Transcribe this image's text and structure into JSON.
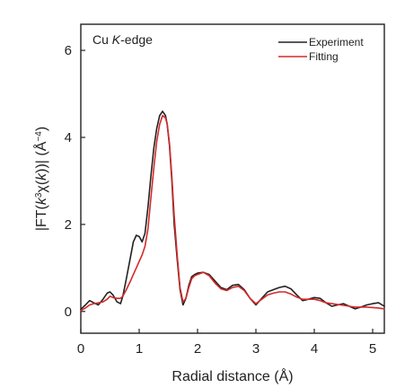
{
  "chart_data": {
    "type": "line",
    "annotation_prefix": "Cu ",
    "annotation_italic": "K",
    "annotation_suffix": "-edge",
    "xlabel": "Radial distance (Å)",
    "ylabel_parts": [
      "|FT(",
      "k",
      "3",
      "χ(",
      "k",
      "))| (Å",
      "−4",
      ")"
    ],
    "xlim": [
      0,
      5.2
    ],
    "ylim": [
      -0.5,
      6.6
    ],
    "xticks": [
      0,
      1,
      2,
      3,
      4,
      5
    ],
    "yticks": [
      0,
      2,
      4,
      6
    ],
    "grid": false,
    "legend_position": "top-right",
    "series": [
      {
        "name": "Experiment",
        "color": "#222222",
        "x": [
          0.0,
          0.08,
          0.15,
          0.22,
          0.3,
          0.38,
          0.45,
          0.5,
          0.55,
          0.62,
          0.68,
          0.72,
          0.78,
          0.85,
          0.9,
          0.95,
          1.0,
          1.05,
          1.1,
          1.15,
          1.2,
          1.25,
          1.3,
          1.35,
          1.4,
          1.45,
          1.48,
          1.52,
          1.56,
          1.6,
          1.65,
          1.7,
          1.75,
          1.8,
          1.85,
          1.9,
          1.95,
          2.0,
          2.1,
          2.2,
          2.3,
          2.4,
          2.5,
          2.6,
          2.7,
          2.8,
          2.9,
          3.0,
          3.1,
          3.2,
          3.3,
          3.4,
          3.5,
          3.6,
          3.7,
          3.8,
          3.9,
          4.0,
          4.1,
          4.2,
          4.3,
          4.4,
          4.5,
          4.6,
          4.7,
          4.8,
          4.9,
          5.0,
          5.1,
          5.2
        ],
        "y": [
          0.05,
          0.15,
          0.25,
          0.2,
          0.15,
          0.28,
          0.42,
          0.45,
          0.38,
          0.22,
          0.18,
          0.35,
          0.75,
          1.25,
          1.6,
          1.75,
          1.72,
          1.6,
          1.8,
          2.4,
          3.1,
          3.75,
          4.2,
          4.5,
          4.6,
          4.5,
          4.3,
          3.8,
          3.0,
          2.0,
          1.2,
          0.5,
          0.15,
          0.3,
          0.6,
          0.8,
          0.85,
          0.88,
          0.9,
          0.85,
          0.7,
          0.55,
          0.5,
          0.6,
          0.62,
          0.5,
          0.3,
          0.15,
          0.3,
          0.45,
          0.5,
          0.55,
          0.58,
          0.52,
          0.38,
          0.25,
          0.28,
          0.32,
          0.3,
          0.2,
          0.12,
          0.15,
          0.18,
          0.12,
          0.06,
          0.1,
          0.15,
          0.18,
          0.2,
          0.12
        ]
      },
      {
        "name": "Fitting",
        "color": "#d42a2a",
        "x": [
          0.0,
          0.08,
          0.15,
          0.22,
          0.3,
          0.38,
          0.45,
          0.5,
          0.55,
          0.62,
          0.68,
          0.72,
          0.78,
          0.85,
          0.9,
          0.95,
          1.0,
          1.05,
          1.1,
          1.15,
          1.2,
          1.25,
          1.3,
          1.35,
          1.4,
          1.45,
          1.48,
          1.52,
          1.56,
          1.6,
          1.65,
          1.7,
          1.75,
          1.8,
          1.85,
          1.9,
          1.95,
          2.0,
          2.1,
          2.2,
          2.3,
          2.4,
          2.5,
          2.6,
          2.7,
          2.8,
          2.9,
          3.0,
          3.1,
          3.2,
          3.3,
          3.4,
          3.5,
          3.6,
          3.7,
          3.8,
          3.9,
          4.0,
          4.1,
          4.2,
          4.3,
          4.4,
          4.5,
          4.6,
          4.7,
          4.8,
          4.9,
          5.0,
          5.1,
          5.2
        ],
        "y": [
          0.02,
          0.08,
          0.15,
          0.18,
          0.2,
          0.22,
          0.28,
          0.35,
          0.32,
          0.3,
          0.3,
          0.35,
          0.5,
          0.7,
          0.85,
          1.0,
          1.15,
          1.3,
          1.5,
          1.9,
          2.6,
          3.3,
          3.9,
          4.3,
          4.5,
          4.45,
          4.3,
          3.85,
          3.1,
          2.2,
          1.3,
          0.55,
          0.22,
          0.3,
          0.55,
          0.75,
          0.82,
          0.85,
          0.9,
          0.82,
          0.65,
          0.52,
          0.48,
          0.55,
          0.58,
          0.48,
          0.3,
          0.18,
          0.28,
          0.38,
          0.42,
          0.45,
          0.45,
          0.4,
          0.33,
          0.28,
          0.28,
          0.28,
          0.25,
          0.2,
          0.18,
          0.16,
          0.14,
          0.12,
          0.1,
          0.1,
          0.1,
          0.09,
          0.08,
          0.06
        ]
      }
    ]
  }
}
